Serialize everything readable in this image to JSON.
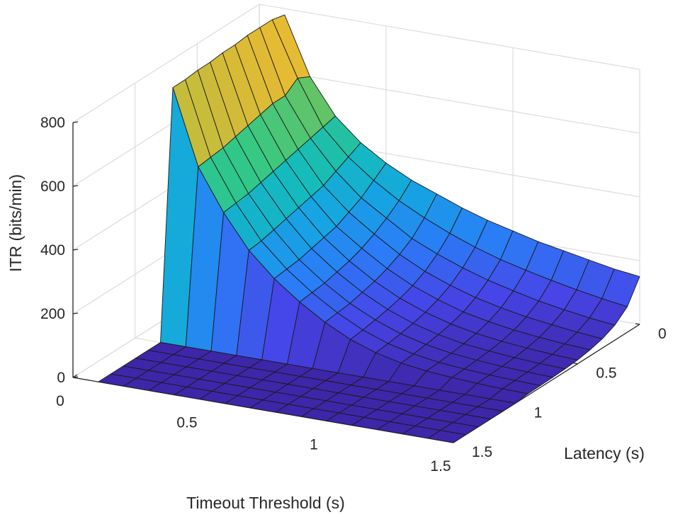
{
  "chart_data": {
    "type": "surface",
    "title": "",
    "xlabel": "Timeout Threshold (s)",
    "ylabel": "Latency (s)",
    "zlabel": "ITR (bits/min)",
    "xlim": [
      0,
      1.5
    ],
    "ylim": [
      0,
      1.5
    ],
    "zlim": [
      0,
      800
    ],
    "x_ticks": [
      0,
      0.5,
      1,
      1.5
    ],
    "x_tick_labels": [
      "0",
      "0.5",
      "1",
      "1.5"
    ],
    "y_ticks": [
      0,
      0.5,
      1,
      1.5
    ],
    "y_tick_labels": [
      "0",
      "0.5",
      "1",
      "1.5"
    ],
    "z_ticks": [
      0,
      200,
      400,
      600,
      800
    ],
    "z_tick_labels": [
      "0",
      "200",
      "400",
      "600",
      "800"
    ],
    "grid": true,
    "colormap": "parula",
    "timeout_threshold_s": [
      0.1,
      0.2,
      0.3,
      0.4,
      0.5,
      0.6,
      0.7,
      0.8,
      0.9,
      1.0,
      1.1,
      1.2,
      1.3,
      1.4,
      1.5
    ],
    "latency_s": [
      0.0,
      0.1,
      0.2,
      0.3,
      0.4,
      0.5,
      0.6,
      0.7,
      0.8,
      0.9,
      1.0,
      1.1,
      1.2,
      1.3,
      1.4,
      1.5
    ],
    "itr_bits_per_min": [
      [
        780,
        790,
        790,
        790,
        785,
        785,
        780,
        780,
        775,
        775,
        0,
        0,
        0,
        0,
        0,
        0
      ],
      [
        600,
        620,
        590,
        590,
        580,
        570,
        560,
        550,
        545,
        540,
        0,
        0,
        0,
        0,
        0,
        0
      ],
      [
        490,
        480,
        470,
        460,
        450,
        440,
        430,
        420,
        415,
        410,
        0,
        0,
        0,
        0,
        0,
        0
      ],
      [
        420,
        400,
        380,
        360,
        350,
        340,
        330,
        320,
        310,
        305,
        0,
        0,
        0,
        0,
        0,
        0
      ],
      [
        370,
        340,
        310,
        290,
        270,
        260,
        250,
        240,
        235,
        230,
        0,
        0,
        0,
        0,
        0,
        0
      ],
      [
        330,
        290,
        260,
        235,
        215,
        200,
        190,
        180,
        175,
        170,
        0,
        0,
        0,
        0,
        0,
        0
      ],
      [
        300,
        250,
        210,
        185,
        165,
        150,
        140,
        130,
        125,
        120,
        0,
        0,
        0,
        0,
        0,
        0
      ],
      [
        270,
        215,
        175,
        145,
        125,
        110,
        100,
        92,
        85,
        80,
        0,
        0,
        0,
        0,
        0,
        0
      ],
      [
        245,
        185,
        145,
        115,
        95,
        80,
        70,
        62,
        56,
        52,
        0,
        0,
        0,
        0,
        0,
        0
      ],
      [
        225,
        160,
        120,
        90,
        70,
        57,
        48,
        42,
        37,
        33,
        0,
        0,
        0,
        0,
        0,
        0
      ],
      [
        205,
        140,
        100,
        72,
        53,
        41,
        33,
        28,
        24,
        22,
        0,
        0,
        0,
        0,
        0,
        0
      ],
      [
        190,
        122,
        82,
        57,
        40,
        30,
        24,
        20,
        17,
        15,
        0,
        0,
        0,
        0,
        0,
        0
      ],
      [
        175,
        106,
        68,
        46,
        31,
        22,
        17,
        14,
        12,
        10,
        0,
        0,
        0,
        0,
        0,
        0
      ],
      [
        160,
        92,
        56,
        36,
        24,
        16,
        12,
        10,
        8,
        7,
        0,
        0,
        0,
        0,
        0,
        0
      ],
      [
        150,
        80,
        47,
        29,
        19,
        12,
        9,
        7,
        6,
        5,
        0,
        0,
        0,
        0,
        0,
        0
      ]
    ]
  }
}
